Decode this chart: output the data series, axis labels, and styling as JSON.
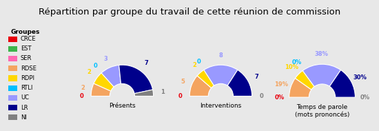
{
  "title": "Répartition par groupe du travail de cette réunion de commission",
  "groups": [
    "CRCE",
    "EST",
    "SER",
    "RDSE",
    "RDPI",
    "RTLI",
    "UC",
    "LR",
    "NI"
  ],
  "colors": [
    "#e8000d",
    "#3cb44b",
    "#ff69b4",
    "#f4a460",
    "#ffd700",
    "#00bfff",
    "#9999ff",
    "#00008b",
    "#808080"
  ],
  "presents": [
    0,
    0,
    0,
    2,
    2,
    0,
    3,
    7,
    1
  ],
  "presents_labels": [
    "0",
    "",
    "",
    "2",
    "2",
    "0",
    "3",
    "7",
    "1"
  ],
  "interventions": [
    0,
    0,
    0,
    5,
    2,
    0,
    8,
    7,
    0
  ],
  "interventions_labels": [
    "0",
    "",
    "",
    "5",
    "2",
    "0",
    "8",
    "7",
    "0"
  ],
  "temps": [
    0,
    0,
    0,
    19,
    10,
    0,
    38,
    30,
    0
  ],
  "temps_labels": [
    "0%",
    "",
    "",
    "19%",
    "10%",
    "0%",
    "38%",
    "30%",
    "0%"
  ],
  "background_color": "#e8e8e8",
  "legend_bg": "#ffffff"
}
